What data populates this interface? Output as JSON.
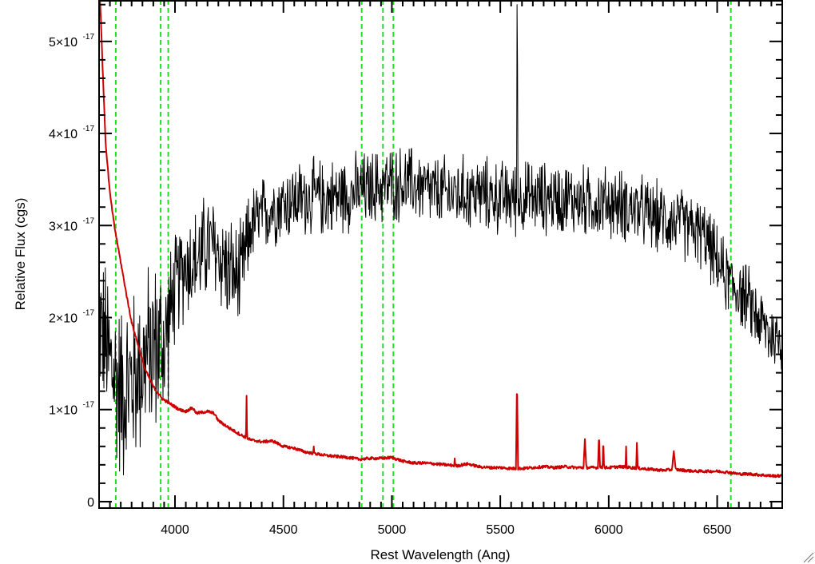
{
  "chart_data": {
    "type": "line",
    "xlabel": "Rest Wavelength (Ang)",
    "ylabel": "Relative Flux (cgs)",
    "xlim": [
      3650,
      6800
    ],
    "ylim": [
      -0.07,
      5.45
    ],
    "y_unit_exponent": -17,
    "x_ticks": [
      {
        "value": 4000,
        "label": "4000"
      },
      {
        "value": 4500,
        "label": "4500"
      },
      {
        "value": 5000,
        "label": "5000"
      },
      {
        "value": 5500,
        "label": "5500"
      },
      {
        "value": 6000,
        "label": "6000"
      },
      {
        "value": 6500,
        "label": "6500"
      }
    ],
    "y_ticks": [
      {
        "value": 0,
        "mantissa": "0",
        "exponent": ""
      },
      {
        "value": 1,
        "mantissa": "1×10",
        "exponent": "-17"
      },
      {
        "value": 2,
        "mantissa": "2×10",
        "exponent": "-17"
      },
      {
        "value": 3,
        "mantissa": "3×10",
        "exponent": "-17"
      },
      {
        "value": 4,
        "mantissa": "4×10",
        "exponent": "-17"
      },
      {
        "value": 5,
        "mantissa": "5×10",
        "exponent": "-17"
      }
    ],
    "reference_lines_x": [
      3727,
      3934,
      3969,
      4861,
      4959,
      5007,
      6563
    ],
    "series": [
      {
        "color": "#000000",
        "style": "noisy",
        "envelope": [
          [
            3650,
            2.0
          ],
          [
            3700,
            1.5
          ],
          [
            3750,
            1.2
          ],
          [
            3800,
            1.3
          ],
          [
            3850,
            1.5
          ],
          [
            3900,
            1.7
          ],
          [
            3950,
            1.7
          ],
          [
            4000,
            2.3
          ],
          [
            4050,
            2.6
          ],
          [
            4100,
            2.6
          ],
          [
            4150,
            2.8
          ],
          [
            4200,
            2.7
          ],
          [
            4250,
            2.5
          ],
          [
            4300,
            2.4
          ],
          [
            4350,
            3.0
          ],
          [
            4400,
            3.1
          ],
          [
            4450,
            3.2
          ],
          [
            4500,
            3.25
          ],
          [
            4600,
            3.3
          ],
          [
            4700,
            3.3
          ],
          [
            4800,
            3.35
          ],
          [
            4900,
            3.4
          ],
          [
            5000,
            3.45
          ],
          [
            5100,
            3.45
          ],
          [
            5200,
            3.35
          ],
          [
            5300,
            3.35
          ],
          [
            5400,
            3.35
          ],
          [
            5500,
            3.3
          ],
          [
            5600,
            3.3
          ],
          [
            5700,
            3.3
          ],
          [
            5800,
            3.3
          ],
          [
            5900,
            3.25
          ],
          [
            6000,
            3.25
          ],
          [
            6100,
            3.2
          ],
          [
            6200,
            3.1
          ],
          [
            6300,
            3.05
          ],
          [
            6400,
            2.95
          ],
          [
            6450,
            2.85
          ],
          [
            6500,
            2.6
          ],
          [
            6550,
            2.4
          ],
          [
            6600,
            2.3
          ],
          [
            6650,
            2.15
          ],
          [
            6700,
            1.95
          ],
          [
            6750,
            1.8
          ],
          [
            6800,
            1.75
          ]
        ],
        "noise": [
          [
            3650,
            0.9
          ],
          [
            3700,
            1.2
          ],
          [
            3950,
            1.1
          ],
          [
            4000,
            0.7
          ],
          [
            4300,
            0.7
          ],
          [
            4350,
            0.5
          ],
          [
            6400,
            0.45
          ],
          [
            6800,
            0.45
          ]
        ],
        "spikes": [
          {
            "x": 5577,
            "y": 5.4
          },
          {
            "x": 5580,
            "y": 4.75
          }
        ]
      },
      {
        "color": "#cc0000",
        "style": "smooth",
        "points": [
          [
            3655,
            5.45
          ],
          [
            3665,
            4.8
          ],
          [
            3680,
            3.9
          ],
          [
            3700,
            3.35
          ],
          [
            3720,
            3.0
          ],
          [
            3750,
            2.6
          ],
          [
            3780,
            2.2
          ],
          [
            3800,
            1.95
          ],
          [
            3830,
            1.7
          ],
          [
            3860,
            1.45
          ],
          [
            3900,
            1.25
          ],
          [
            3940,
            1.12
          ],
          [
            3980,
            1.06
          ],
          [
            4020,
            1.0
          ],
          [
            4050,
            0.98
          ],
          [
            4080,
            1.02
          ],
          [
            4100,
            0.96
          ],
          [
            4150,
            0.98
          ],
          [
            4180,
            0.96
          ],
          [
            4200,
            0.88
          ],
          [
            4250,
            0.8
          ],
          [
            4300,
            0.73
          ],
          [
            4350,
            0.67
          ],
          [
            4400,
            0.65
          ],
          [
            4450,
            0.66
          ],
          [
            4500,
            0.6
          ],
          [
            4550,
            0.58
          ],
          [
            4600,
            0.54
          ],
          [
            4650,
            0.52
          ],
          [
            4700,
            0.5
          ],
          [
            4750,
            0.49
          ],
          [
            4800,
            0.48
          ],
          [
            4850,
            0.46
          ],
          [
            4900,
            0.47
          ],
          [
            4950,
            0.47
          ],
          [
            5000,
            0.48
          ],
          [
            5050,
            0.44
          ],
          [
            5100,
            0.42
          ],
          [
            5150,
            0.42
          ],
          [
            5200,
            0.41
          ],
          [
            5250,
            0.4
          ],
          [
            5300,
            0.39
          ],
          [
            5350,
            0.41
          ],
          [
            5400,
            0.38
          ],
          [
            5450,
            0.37
          ],
          [
            5500,
            0.37
          ],
          [
            5550,
            0.36
          ],
          [
            5600,
            0.36
          ],
          [
            5650,
            0.37
          ],
          [
            5700,
            0.38
          ],
          [
            5750,
            0.37
          ],
          [
            5800,
            0.38
          ],
          [
            5850,
            0.37
          ],
          [
            5900,
            0.37
          ],
          [
            5950,
            0.37
          ],
          [
            6000,
            0.37
          ],
          [
            6050,
            0.38
          ],
          [
            6100,
            0.37
          ],
          [
            6150,
            0.36
          ],
          [
            6200,
            0.35
          ],
          [
            6250,
            0.34
          ],
          [
            6300,
            0.35
          ],
          [
            6350,
            0.34
          ],
          [
            6400,
            0.33
          ],
          [
            6450,
            0.33
          ],
          [
            6500,
            0.33
          ],
          [
            6550,
            0.32
          ],
          [
            6600,
            0.3
          ],
          [
            6650,
            0.3
          ],
          [
            6700,
            0.29
          ],
          [
            6750,
            0.28
          ],
          [
            6800,
            0.28
          ]
        ],
        "peaks": [
          {
            "x": 4330,
            "y": 1.15,
            "w": 2
          },
          {
            "x": 4640,
            "y": 0.6,
            "w": 2
          },
          {
            "x": 5290,
            "y": 0.47,
            "w": 2
          },
          {
            "x": 5577,
            "y": 1.4,
            "w": 4
          },
          {
            "x": 5890,
            "y": 0.68,
            "w": 6
          },
          {
            "x": 5955,
            "y": 0.75,
            "w": 4
          },
          {
            "x": 5975,
            "y": 0.7,
            "w": 3
          },
          {
            "x": 6080,
            "y": 0.6,
            "w": 2
          },
          {
            "x": 6130,
            "y": 0.64,
            "w": 3
          },
          {
            "x": 6300,
            "y": 0.55,
            "w": 8
          }
        ]
      }
    ]
  }
}
